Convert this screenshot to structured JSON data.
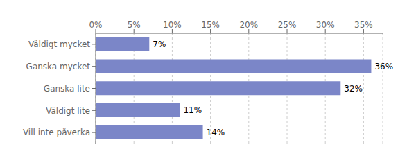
{
  "chart_data": {
    "type": "bar",
    "orientation": "horizontal",
    "categories": [
      "Väldigt mycket",
      "Ganska mycket",
      "Ganska lite",
      "Väldigt lite",
      "Vill inte påverka"
    ],
    "values": [
      7,
      36,
      32,
      11,
      14
    ],
    "value_labels": [
      "7%",
      "36%",
      "32%",
      "11%",
      "14%"
    ],
    "data_labels": true,
    "color": "#7b86c8",
    "xlim": [
      0,
      37.5
    ],
    "xticks": [
      {
        "value": 0,
        "label": "0%"
      },
      {
        "value": 5,
        "label": "5%"
      },
      {
        "value": 10,
        "label": "10%"
      },
      {
        "value": 15,
        "label": "15%"
      },
      {
        "value": 20,
        "label": "20%"
      },
      {
        "value": 25,
        "label": "25%"
      },
      {
        "value": 30,
        "label": "30%"
      },
      {
        "value": 35,
        "label": "35%"
      }
    ],
    "grid": true
  }
}
